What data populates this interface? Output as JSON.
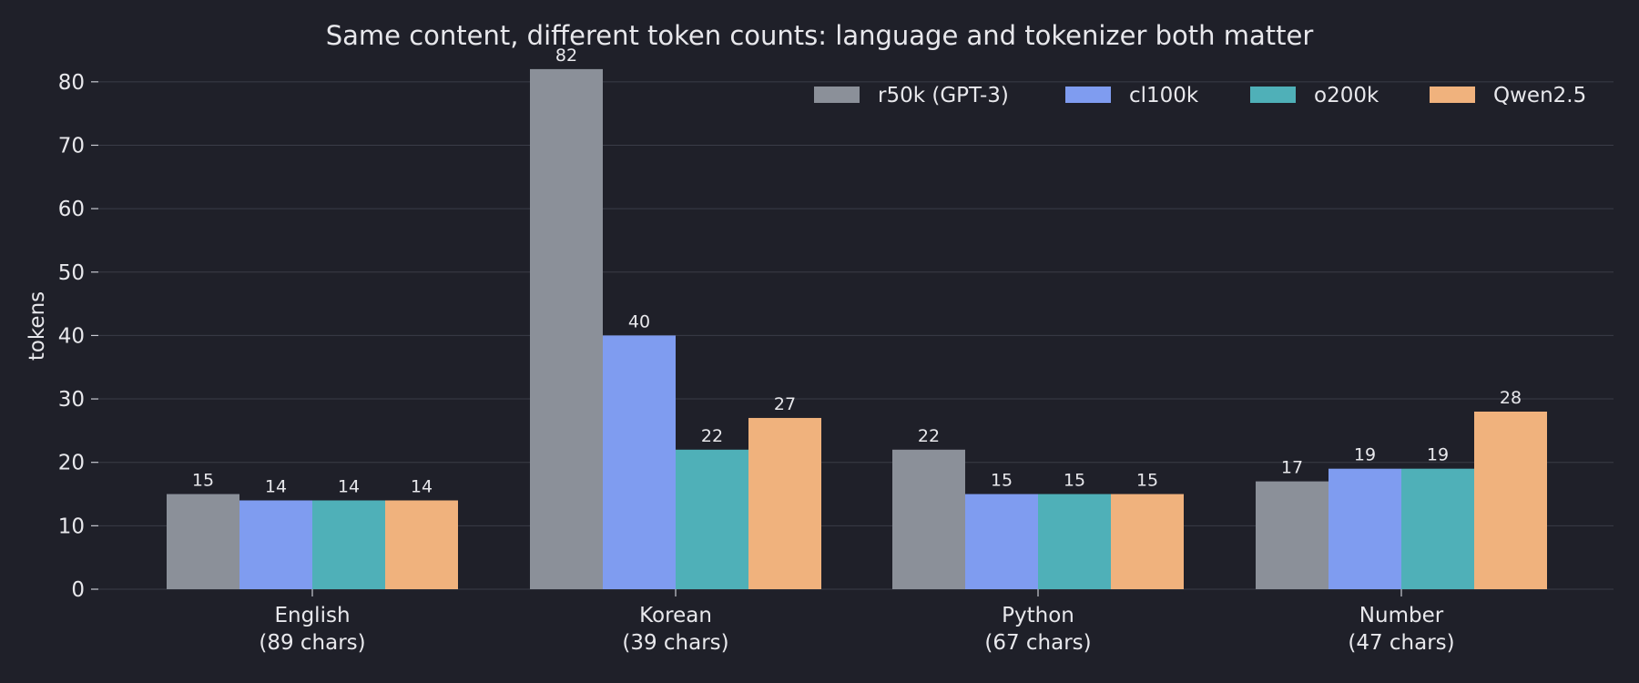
{
  "chart_data": {
    "type": "bar",
    "title": "Same content, different token counts: language and tokenizer both matter",
    "xlabel": "",
    "ylabel": "tokens",
    "ylim": [
      0,
      85
    ],
    "yticks": [
      0,
      10,
      20,
      30,
      40,
      50,
      60,
      70,
      80
    ],
    "grid": true,
    "legend_position": "top-right",
    "categories": [
      [
        "English",
        "(89 chars)"
      ],
      [
        "Korean",
        "(39 chars)"
      ],
      [
        "Python",
        "(67 chars)"
      ],
      [
        "Number",
        "(47 chars)"
      ]
    ],
    "series": [
      {
        "name": "r50k (GPT-3)",
        "color": "#8b9099",
        "values": [
          15,
          82,
          22,
          17
        ]
      },
      {
        "name": "cl100k",
        "color": "#7f9cf0",
        "values": [
          14,
          40,
          15,
          19
        ]
      },
      {
        "name": "o200k",
        "color": "#4fb0b8",
        "values": [
          14,
          22,
          15,
          19
        ]
      },
      {
        "name": "Qwen2.5",
        "color": "#f0b27d",
        "values": [
          14,
          27,
          15,
          28
        ]
      }
    ]
  }
}
